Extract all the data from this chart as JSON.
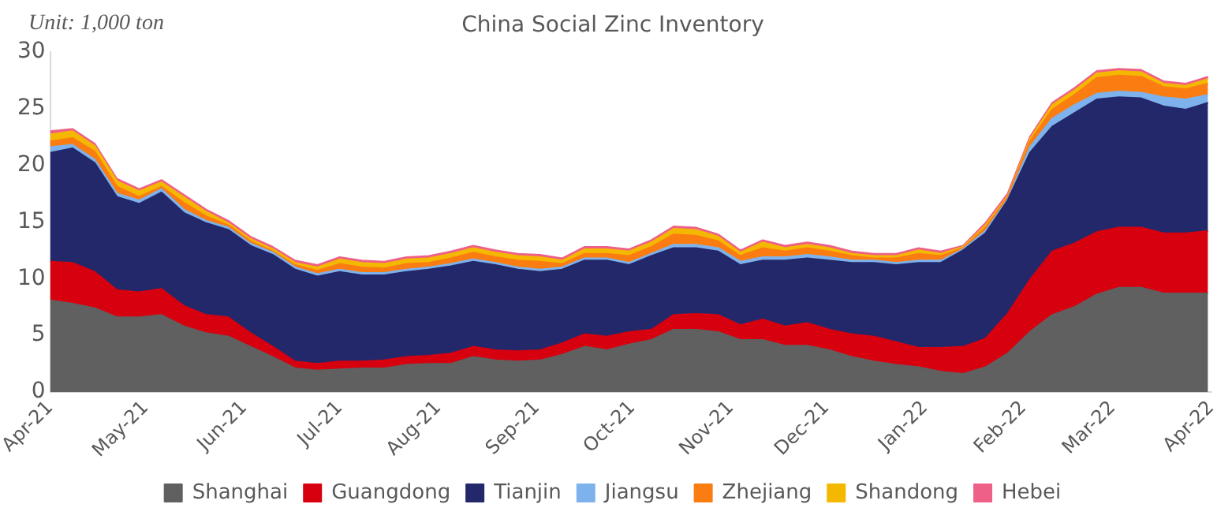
{
  "chart_data": {
    "type": "area",
    "title": "China Social Zinc Inventory",
    "annotations": [
      "Unit: 1,000 ton"
    ],
    "stacked": true,
    "grid": false,
    "legend": "bottom",
    "marker": "none",
    "x": [
      "2021-04-01",
      "2021-04-08",
      "2021-04-15",
      "2021-04-22",
      "2021-04-29",
      "2021-05-06",
      "2021-05-13",
      "2021-05-20",
      "2021-05-27",
      "2021-06-03",
      "2021-06-10",
      "2021-06-17",
      "2021-06-24",
      "2021-07-01",
      "2021-07-08",
      "2021-07-15",
      "2021-07-22",
      "2021-07-29",
      "2021-08-05",
      "2021-08-12",
      "2021-08-19",
      "2021-08-26",
      "2021-09-02",
      "2021-09-09",
      "2021-09-16",
      "2021-09-23",
      "2021-09-30",
      "2021-10-07",
      "2021-10-14",
      "2021-10-21",
      "2021-10-28",
      "2021-11-04",
      "2021-11-11",
      "2021-11-18",
      "2021-11-25",
      "2021-12-02",
      "2021-12-09",
      "2021-12-16",
      "2021-12-23",
      "2021-12-30",
      "2022-01-06",
      "2022-01-13",
      "2022-01-20",
      "2022-01-27",
      "2022-02-03",
      "2022-02-10",
      "2022-02-17",
      "2022-02-24",
      "2022-03-03",
      "2022-03-10",
      "2022-03-17",
      "2022-03-24",
      "2022-03-31"
    ],
    "xlim": [
      "2021-04-01",
      "2022-04-01"
    ],
    "xticks": [
      {
        "value": "2021-04-01",
        "label": "Apr-21"
      },
      {
        "value": "2021-05-01",
        "label": "May-21"
      },
      {
        "value": "2021-06-01",
        "label": "Jun-21"
      },
      {
        "value": "2021-07-01",
        "label": "Jul-21"
      },
      {
        "value": "2021-08-01",
        "label": "Aug-21"
      },
      {
        "value": "2021-09-01",
        "label": "Sep-21"
      },
      {
        "value": "2021-10-01",
        "label": "Oct-21"
      },
      {
        "value": "2021-11-01",
        "label": "Nov-21"
      },
      {
        "value": "2021-12-01",
        "label": "Dec-21"
      },
      {
        "value": "2022-01-01",
        "label": "Jan-22"
      },
      {
        "value": "2022-02-01",
        "label": "Feb-22"
      },
      {
        "value": "2022-03-01",
        "label": "Mar-22"
      },
      {
        "value": "2022-04-01",
        "label": "Apr-22"
      }
    ],
    "ylim": [
      0,
      30
    ],
    "yticks": [
      0,
      5,
      10,
      15,
      20,
      25,
      30
    ],
    "series": [
      {
        "name": "Shanghai",
        "color": "#606060",
        "values": [
          8.1,
          7.8,
          7.4,
          6.6,
          6.6,
          6.8,
          5.8,
          5.2,
          4.9,
          4.0,
          3.1,
          2.1,
          1.9,
          2.0,
          2.1,
          2.1,
          2.4,
          2.5,
          2.5,
          3.1,
          2.8,
          2.7,
          2.8,
          3.3,
          4.0,
          3.7,
          4.2,
          4.6,
          5.5,
          5.5,
          5.3,
          4.6,
          4.6,
          4.1,
          4.1,
          3.7,
          3.1,
          2.7,
          2.4,
          2.2,
          1.8,
          1.6,
          2.2,
          3.4,
          5.3,
          6.8,
          7.5,
          8.6,
          9.2,
          9.2,
          8.7,
          8.7,
          8.7
        ]
      },
      {
        "name": "Guangdong",
        "color": "#d7000f",
        "values": [
          3.4,
          3.6,
          3.2,
          2.4,
          2.2,
          2.3,
          1.8,
          1.6,
          1.7,
          1.2,
          0.9,
          0.6,
          0.6,
          0.7,
          0.6,
          0.7,
          0.7,
          0.7,
          0.9,
          0.9,
          0.9,
          0.9,
          0.9,
          1.0,
          1.1,
          1.2,
          1.1,
          0.9,
          1.3,
          1.4,
          1.5,
          1.3,
          1.8,
          1.7,
          2.0,
          1.8,
          2.0,
          2.2,
          2.0,
          1.7,
          2.1,
          2.4,
          2.5,
          3.5,
          4.6,
          5.6,
          5.6,
          5.5,
          5.3,
          5.3,
          5.3,
          5.3,
          5.5
        ]
      },
      {
        "name": "Tianjin",
        "color": "#23286b",
        "values": [
          9.6,
          10.1,
          9.6,
          8.2,
          7.8,
          8.5,
          8.2,
          8.1,
          7.7,
          7.7,
          8.1,
          8.1,
          7.7,
          7.9,
          7.6,
          7.5,
          7.5,
          7.6,
          7.7,
          7.5,
          7.5,
          7.2,
          6.9,
          6.5,
          6.5,
          6.7,
          5.9,
          6.5,
          5.9,
          5.8,
          5.6,
          5.3,
          5.2,
          5.8,
          5.7,
          6.1,
          6.3,
          6.5,
          6.8,
          7.5,
          7.5,
          8.5,
          9.3,
          10.0,
          11.2,
          11.0,
          11.5,
          11.7,
          11.5,
          11.4,
          11.2,
          10.9,
          11.3
        ]
      },
      {
        "name": "Jiangsu",
        "color": "#7eb2ec",
        "values": [
          0.5,
          0.3,
          0.3,
          0.3,
          0.3,
          0.3,
          0.3,
          0.2,
          0.2,
          0.2,
          0.2,
          0.2,
          0.2,
          0.2,
          0.2,
          0.2,
          0.2,
          0.2,
          0.2,
          0.2,
          0.2,
          0.2,
          0.2,
          0.2,
          0.2,
          0.2,
          0.2,
          0.2,
          0.3,
          0.3,
          0.3,
          0.3,
          0.3,
          0.3,
          0.3,
          0.3,
          0.2,
          0.2,
          0.2,
          0.2,
          0.2,
          0.1,
          0.2,
          0.1,
          0.5,
          0.7,
          0.7,
          0.5,
          0.5,
          0.5,
          0.8,
          0.9,
          0.7
        ]
      },
      {
        "name": "Zhejiang",
        "color": "#fb7d12",
        "values": [
          0.5,
          0.6,
          0.7,
          0.6,
          0.3,
          0.2,
          0.6,
          0.4,
          0.2,
          0.2,
          0.1,
          0.2,
          0.3,
          0.5,
          0.5,
          0.4,
          0.5,
          0.4,
          0.5,
          0.6,
          0.5,
          0.6,
          0.7,
          0.3,
          0.4,
          0.4,
          0.6,
          0.6,
          0.9,
          0.8,
          0.6,
          0.5,
          0.8,
          0.5,
          0.6,
          0.5,
          0.4,
          0.2,
          0.4,
          0.6,
          0.4,
          0.1,
          0.3,
          0.2,
          0.5,
          0.8,
          0.9,
          1.4,
          1.4,
          1.4,
          0.9,
          0.9,
          1.0
        ]
      },
      {
        "name": "Shandong",
        "color": "#f5b800",
        "values": [
          0.6,
          0.6,
          0.5,
          0.5,
          0.5,
          0.4,
          0.5,
          0.4,
          0.2,
          0.2,
          0.2,
          0.2,
          0.3,
          0.4,
          0.4,
          0.4,
          0.4,
          0.4,
          0.4,
          0.4,
          0.4,
          0.4,
          0.4,
          0.3,
          0.4,
          0.4,
          0.4,
          0.4,
          0.5,
          0.5,
          0.4,
          0.3,
          0.5,
          0.3,
          0.3,
          0.3,
          0.2,
          0.2,
          0.2,
          0.3,
          0.2,
          0.1,
          0.2,
          0.1,
          0.2,
          0.4,
          0.4,
          0.4,
          0.4,
          0.4,
          0.3,
          0.3,
          0.4
        ]
      },
      {
        "name": "Hebei",
        "color": "#ee6088",
        "values": [
          0.3,
          0.2,
          0.2,
          0.2,
          0.2,
          0.2,
          0.2,
          0.2,
          0.2,
          0.2,
          0.2,
          0.2,
          0.2,
          0.2,
          0.2,
          0.2,
          0.2,
          0.2,
          0.2,
          0.2,
          0.2,
          0.2,
          0.2,
          0.2,
          0.2,
          0.2,
          0.2,
          0.2,
          0.2,
          0.2,
          0.2,
          0.2,
          0.2,
          0.2,
          0.2,
          0.2,
          0.2,
          0.2,
          0.2,
          0.2,
          0.2,
          0.1,
          0.2,
          0.2,
          0.2,
          0.2,
          0.2,
          0.2,
          0.2,
          0.2,
          0.2,
          0.2,
          0.2
        ]
      }
    ]
  }
}
